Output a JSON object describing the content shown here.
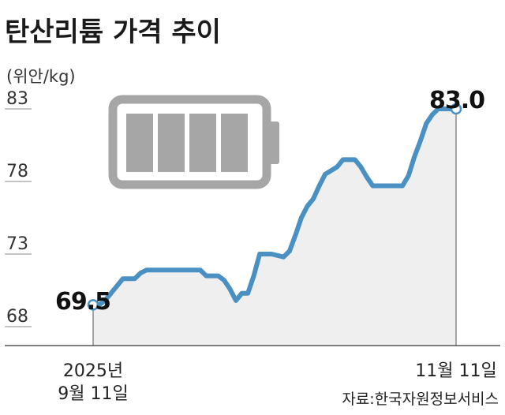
{
  "header": {
    "title": "탄산리튬 가격 추이",
    "unit": "(위안/kg)"
  },
  "source": "자료:한국자원정보서비스",
  "colors": {
    "line": "#4a90c2",
    "area": "#efefef",
    "battery": "#a6a6a6",
    "axis": "#555555",
    "marker_fill": "#ffffff"
  },
  "icon": "battery-icon",
  "chart_data": {
    "type": "line",
    "title": "탄산리튬 가격 추이",
    "ylabel": "(위안/kg)",
    "ylim": [
      68,
      86
    ],
    "yticks": [
      "68",
      "73",
      "78",
      "83"
    ],
    "x_labels": {
      "start": [
        "2025년",
        "9월 11일"
      ],
      "end": [
        "11월 11일"
      ]
    },
    "annotations": {
      "start": "69.5",
      "end": "83.0"
    },
    "x": [
      "2025-09-11",
      "2025-09-12",
      "2025-09-13",
      "2025-09-15",
      "2025-09-16",
      "2025-09-17",
      "2025-09-18",
      "2025-09-19",
      "2025-09-20",
      "2025-09-21",
      "2025-09-22",
      "2025-09-23",
      "2025-09-24",
      "2025-09-25",
      "2025-09-26",
      "2025-09-27",
      "2025-09-29",
      "2025-09-30",
      "2025-10-01",
      "2025-10-02",
      "2025-10-03",
      "2025-10-04",
      "2025-10-05",
      "2025-10-06",
      "2025-10-07",
      "2025-10-08",
      "2025-10-09",
      "2025-10-10",
      "2025-10-11",
      "2025-10-13",
      "2025-10-14",
      "2025-10-15",
      "2025-10-16",
      "2025-10-17",
      "2025-10-18",
      "2025-10-19",
      "2025-10-20",
      "2025-10-22",
      "2025-10-23",
      "2025-10-24",
      "2025-10-25",
      "2025-10-26",
      "2025-10-27",
      "2025-10-28",
      "2025-10-29",
      "2025-10-30",
      "2025-11-01",
      "2025-11-02",
      "2025-11-03",
      "2025-11-04",
      "2025-11-05",
      "2025-11-06",
      "2025-11-07",
      "2025-11-08",
      "2025-11-09",
      "2025-11-10",
      "2025-11-11"
    ],
    "values": [
      69.5,
      69.5,
      69.8,
      70.8,
      71.3,
      71.3,
      71.3,
      71.7,
      71.9,
      71.9,
      71.9,
      71.9,
      71.9,
      71.9,
      71.9,
      71.9,
      71.9,
      71.5,
      71.5,
      71.5,
      71.2,
      70.6,
      69.8,
      70.3,
      70.3,
      71.5,
      73.0,
      73.0,
      73.0,
      72.8,
      73.2,
      74.3,
      75.5,
      76.3,
      76.8,
      77.7,
      78.5,
      79.0,
      79.5,
      79.5,
      79.5,
      79.0,
      78.3,
      77.7,
      77.7,
      77.7,
      77.7,
      77.7,
      78.4,
      79.7,
      80.8,
      82.0,
      82.6,
      83.0,
      83.0,
      83.0,
      83.0
    ]
  }
}
